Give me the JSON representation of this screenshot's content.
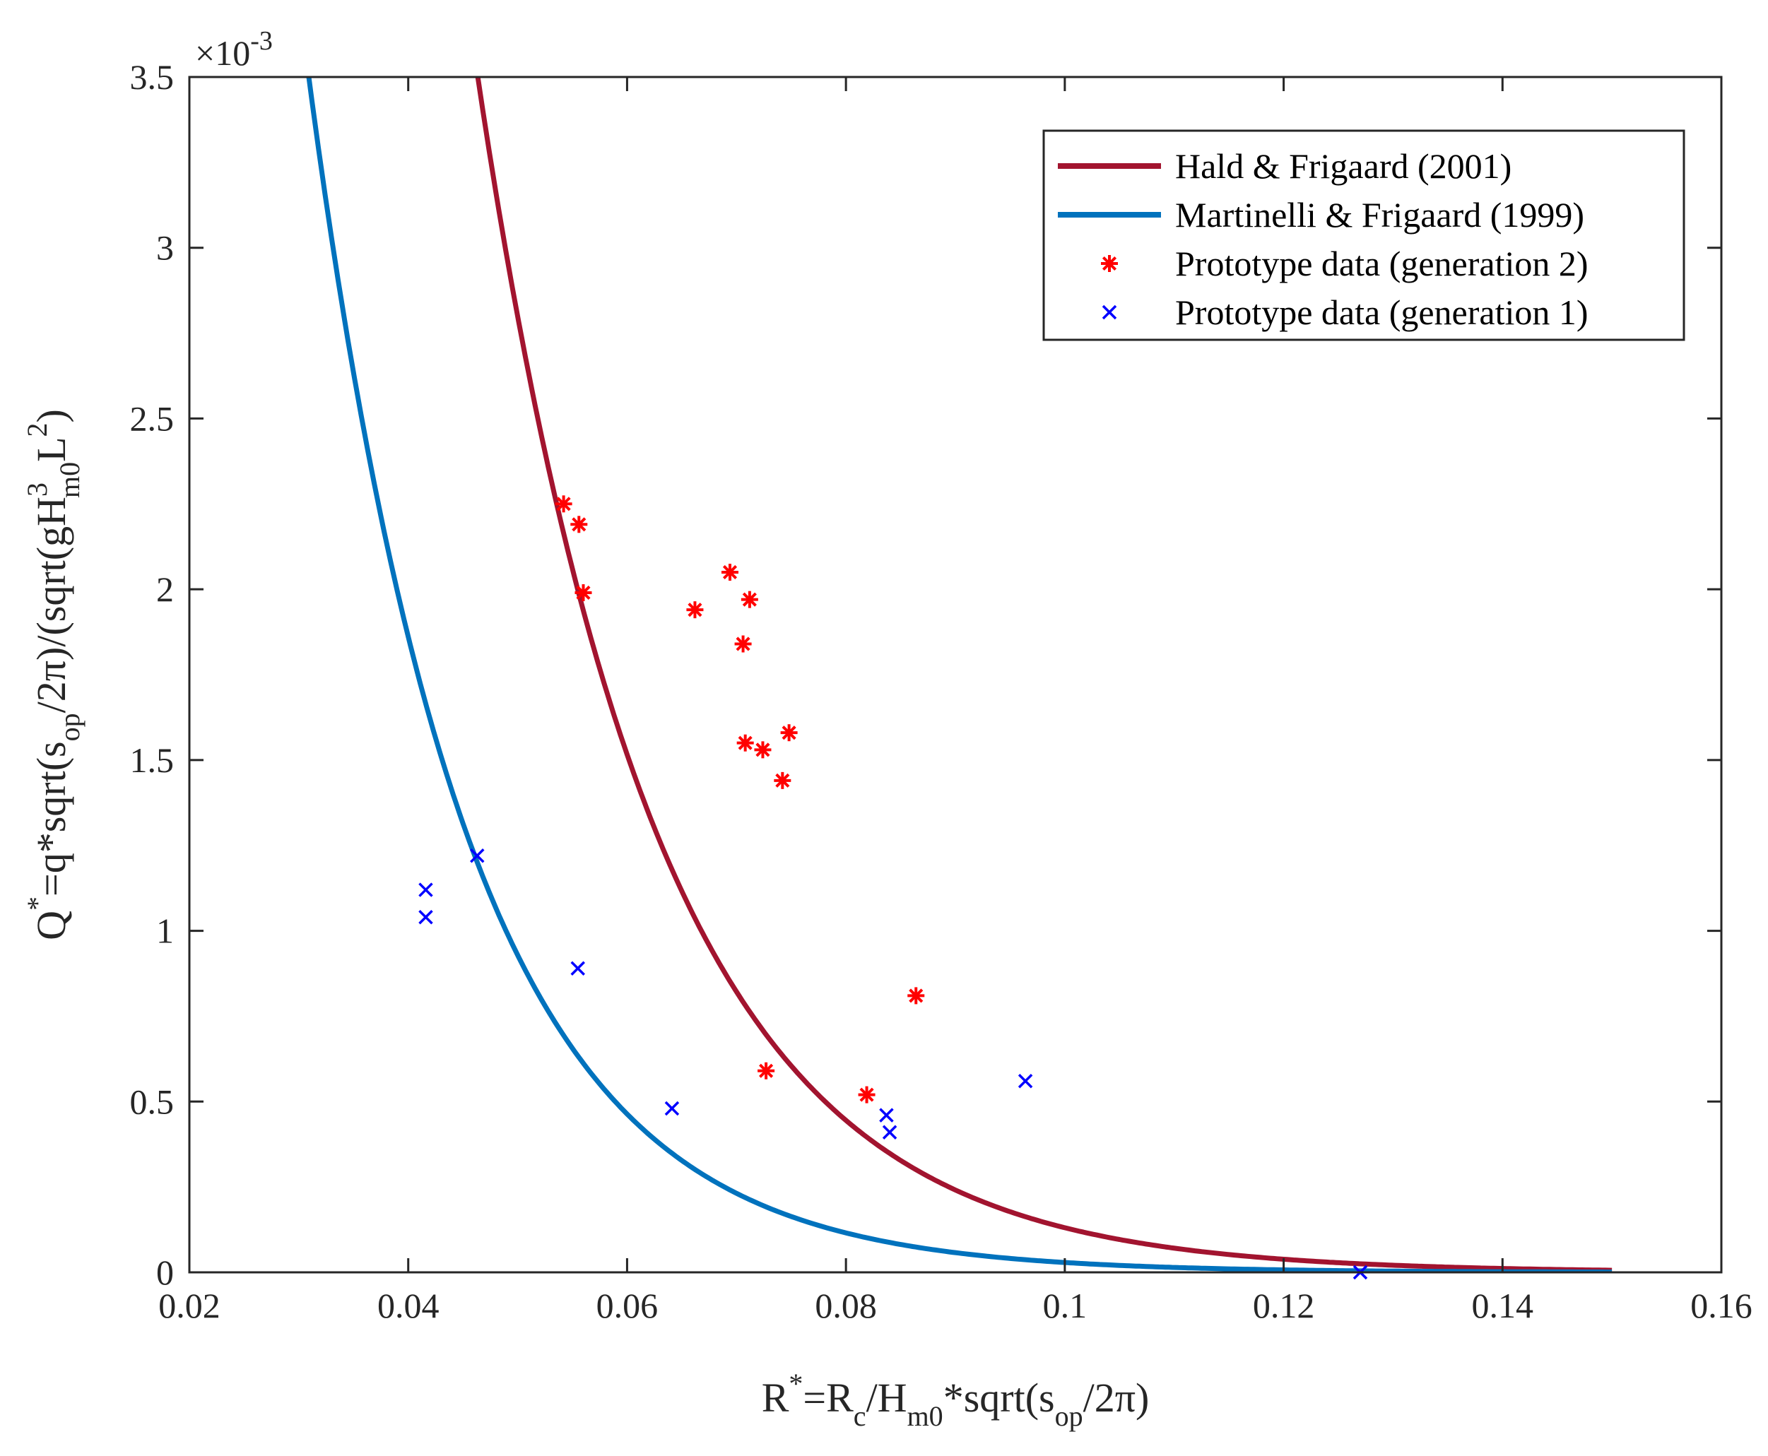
{
  "chart_data": {
    "type": "line",
    "title": "",
    "xlabel": {
      "base": "R",
      "sup": "*",
      "middle1": "=R",
      "sub1": "c",
      "middle2": "/H",
      "sub2": "m0",
      "middle3": "*sqrt(s",
      "sub3": "op",
      "tail": "/2π)"
    },
    "ylabel": {
      "base": "Q",
      "sup1": "*",
      "middle1": "=q*sqrt(s",
      "sub1": "op",
      "middle2": "/2π)/(sqrt(gH",
      "sup2": "3",
      "sub2": "m0",
      "middle3": "L",
      "sup3": "2",
      "tail": ")"
    },
    "xlim": [
      0.02,
      0.16
    ],
    "ylim": [
      0,
      0.0035
    ],
    "y_multiplier": {
      "base": "×10",
      "exponent": "-3"
    },
    "x_ticks": [
      0.02,
      0.04,
      0.06,
      0.08,
      0.1,
      0.12,
      0.14,
      0.16
    ],
    "x_tick_labels": [
      "0.02",
      "0.04",
      "0.06",
      "0.08",
      "0.1",
      "0.12",
      "0.14",
      "0.16"
    ],
    "y_ticks": [
      0,
      0.0005,
      0.001,
      0.0015,
      0.002,
      0.0025,
      0.003,
      0.0035
    ],
    "y_tick_labels": [
      "0",
      "0.5",
      "1",
      "1.5",
      "2",
      "2.5",
      "3",
      "3.5"
    ],
    "grid": false,
    "legend_position": "top-right",
    "series": [
      {
        "name": "Hald & Frigaard (2001)",
        "kind": "curve",
        "color": "#A2142F",
        "model": "Q = a * exp(-b * R)",
        "a": 0.06,
        "b": 61.3,
        "x_range": [
          0.03,
          0.15
        ]
      },
      {
        "name": "Martinelli & Frigaard (1999)",
        "kind": "curve",
        "color": "#0072BD",
        "model": "Q = a * exp(-b * R)",
        "a": 0.03,
        "b": 69.5,
        "x_range": [
          0.03,
          0.15
        ]
      },
      {
        "name": "Prototype data (generation 2)",
        "kind": "scatter",
        "marker": "asterisk",
        "color": "#FF0000",
        "points": [
          [
            0.0542,
            0.00225
          ],
          [
            0.0556,
            0.00219
          ],
          [
            0.056,
            0.00199
          ],
          [
            0.0662,
            0.00194
          ],
          [
            0.0694,
            0.00205
          ],
          [
            0.0712,
            0.00197
          ],
          [
            0.0706,
            0.00184
          ],
          [
            0.0708,
            0.00155
          ],
          [
            0.0724,
            0.00153
          ],
          [
            0.0748,
            0.00158
          ],
          [
            0.0742,
            0.00144
          ],
          [
            0.0864,
            0.00081
          ],
          [
            0.0727,
            0.00059
          ],
          [
            0.0819,
            0.00052
          ]
        ]
      },
      {
        "name": "Prototype data (generation 1)",
        "kind": "scatter",
        "marker": "cross",
        "color": "#0000FF",
        "points": [
          [
            0.0416,
            0.00112
          ],
          [
            0.0416,
            0.00104
          ],
          [
            0.0463,
            0.00122
          ],
          [
            0.0555,
            0.00089
          ],
          [
            0.0641,
            0.00048
          ],
          [
            0.0837,
            0.00046
          ],
          [
            0.084,
            0.00041
          ],
          [
            0.0964,
            0.00056
          ],
          [
            0.127,
            0.0
          ]
        ]
      }
    ]
  }
}
